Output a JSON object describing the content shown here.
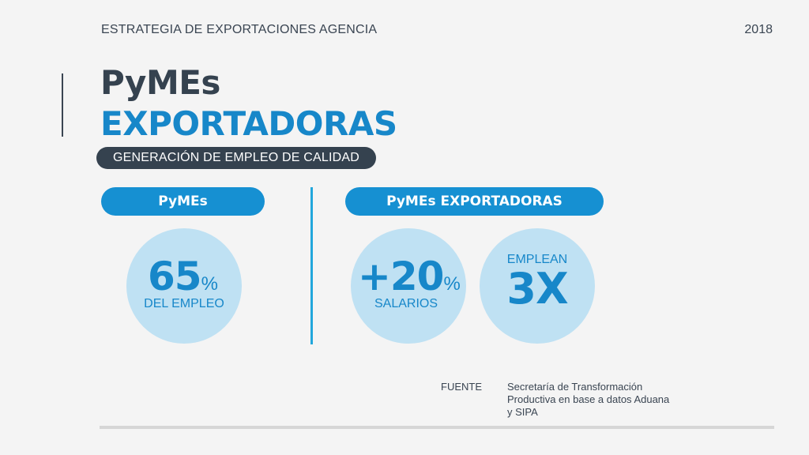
{
  "header": {
    "left_text": "ESTRATEGIA DE EXPORTACIONES AGENCIA",
    "year": "2018"
  },
  "title": {
    "line1": "PyMEs",
    "line2": "EXPORTADORAS"
  },
  "subtitle": "GENERACIÓN DE EMPLEO DE CALIDAD",
  "sections": {
    "left_pill": "PyMEs",
    "right_pill": "PyMEs EXPORTADORAS"
  },
  "stats": {
    "employment": {
      "value": "65",
      "unit": "%",
      "label": "DEL EMPLEO"
    },
    "salaries": {
      "value": "+20",
      "unit": "%",
      "label": "SALARIOS"
    },
    "employ": {
      "top_label": "EMPLEAN",
      "value": "3X"
    }
  },
  "source": {
    "label": "FUENTE",
    "text": "Secretaría de Transformación Productiva en base a datos Aduana y SIPA"
  },
  "colors": {
    "dark": "#35424f",
    "blue": "#1787c9",
    "pill_blue": "#1690d2",
    "circle": "#bfe1f3",
    "divider": "#22a7dc"
  }
}
